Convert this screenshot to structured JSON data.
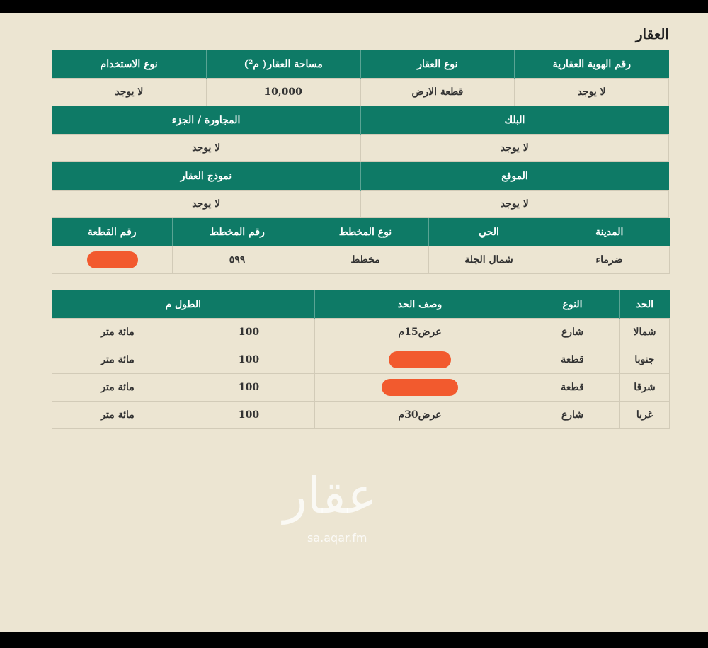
{
  "title": "العقار",
  "watermark": {
    "logo": "عقار",
    "site": "sa.aqar.fm"
  },
  "t1": {
    "headers": [
      "رقم الهوية العقارية",
      "نوع العقار",
      "مساحة العقار( م²)",
      "نوع الاستخدام"
    ],
    "values": [
      "لا يوجد",
      "قطعة الارض",
      "10,000",
      "لا يوجد"
    ]
  },
  "t2": {
    "headers": [
      "البلك",
      "المجاورة / الجزء"
    ],
    "values": [
      "لا يوجد",
      "لا يوجد"
    ]
  },
  "t3": {
    "headers": [
      "الموقع",
      "نموذج العقار"
    ],
    "values": [
      "لا يوجد",
      "لا يوجد"
    ]
  },
  "t4": {
    "headers": [
      "المدينة",
      "الحي",
      "نوع المخطط",
      "رقم المخطط",
      "رقم القطعة"
    ],
    "values": [
      "ضرماء",
      "شمال الجلة",
      "مخطط",
      "٥٩٩",
      ""
    ]
  },
  "t5": {
    "headers": [
      "الحد",
      "النوع",
      "وصف الحد",
      "الطول م"
    ],
    "rows": [
      {
        "side": "شمالا",
        "type": "شارع",
        "desc": "عرض15م",
        "len": "100",
        "len_text": "مائة متر"
      },
      {
        "side": "جنوبا",
        "type": "قطعة",
        "desc": "",
        "len": "100",
        "len_text": "مائة متر"
      },
      {
        "side": "شرقا",
        "type": "قطعة",
        "desc": "",
        "len": "100",
        "len_text": "مائة متر"
      },
      {
        "side": "غربا",
        "type": "شارع",
        "desc": "عرض30م",
        "len": "100",
        "len_text": "مائة متر"
      }
    ]
  },
  "colors": {
    "header": "#0e7a66",
    "redaction": "#f25a2e",
    "paper": "#ece5d2"
  }
}
